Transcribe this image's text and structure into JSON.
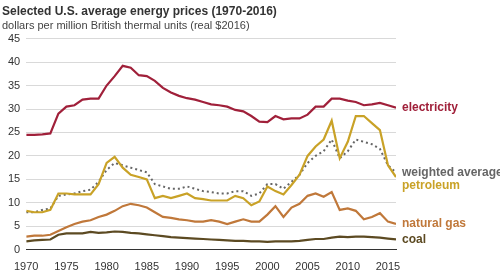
{
  "chart_data": {
    "type": "line",
    "title": "Selected U.S. average energy prices (1970-2016)",
    "subtitle": "dollars per million British thermal units (real $2016)",
    "x": [
      1970,
      1971,
      1972,
      1973,
      1974,
      1975,
      1976,
      1977,
      1978,
      1979,
      1980,
      1981,
      1982,
      1983,
      1984,
      1985,
      1986,
      1987,
      1988,
      1989,
      1990,
      1991,
      1992,
      1993,
      1994,
      1995,
      1996,
      1997,
      1998,
      1999,
      2000,
      2001,
      2002,
      2003,
      2004,
      2005,
      2006,
      2007,
      2008,
      2009,
      2010,
      2011,
      2012,
      2013,
      2014,
      2015,
      2016
    ],
    "xlim": [
      1970,
      2016
    ],
    "xticks": [
      1970,
      1975,
      1980,
      1985,
      1990,
      1995,
      2000,
      2005,
      2010,
      2015
    ],
    "ylim": [
      0,
      45
    ],
    "yticks": [
      0,
      5,
      10,
      15,
      20,
      25,
      30,
      35,
      40,
      45
    ],
    "grid": true,
    "series": [
      {
        "name": "electricity",
        "color": "#a0203a",
        "line_style": "solid",
        "values": [
          24.5,
          24.5,
          24.6,
          24.8,
          29,
          30.5,
          30.8,
          32,
          32.2,
          32.2,
          35,
          37,
          39.2,
          38.8,
          37.2,
          37,
          36,
          34.5,
          33.5,
          32.8,
          32.3,
          32,
          31.5,
          31,
          30.8,
          30.5,
          29.8,
          29.5,
          28.5,
          27.3,
          27.2,
          28.5,
          27.8,
          28,
          28,
          28.8,
          30.5,
          30.5,
          32.2,
          32.2,
          31.8,
          31.5,
          30.8,
          31,
          31.3,
          30.8,
          30.3
        ]
      },
      {
        "name": "petroleum",
        "color": "#c9a227",
        "line_style": "solid",
        "values": [
          8.3,
          8,
          8,
          8.5,
          12,
          12,
          11.8,
          11.8,
          11.8,
          14,
          18.5,
          19.8,
          17.5,
          16,
          15.5,
          15,
          11,
          11.5,
          11,
          11.5,
          12,
          11,
          10.8,
          10.5,
          10.5,
          10.5,
          11.5,
          11,
          9.5,
          10.3,
          13.5,
          12.5,
          11.8,
          13.8,
          16,
          20,
          22,
          23.5,
          27.5,
          19.5,
          23,
          28.5,
          28.5,
          27,
          25.5,
          18,
          15.5
        ]
      },
      {
        "name": "weighted average",
        "color": "#666666",
        "line_style": "dotted",
        "values": [
          8,
          8,
          8.5,
          8.8,
          11.5,
          11.8,
          12,
          12.5,
          12.8,
          14.5,
          17,
          18.5,
          18,
          17.5,
          17,
          16.5,
          14,
          13.5,
          13,
          13,
          13.5,
          13,
          12.5,
          12.3,
          12,
          12,
          12.5,
          12.5,
          11.5,
          12,
          14,
          14,
          13,
          14.5,
          16,
          18.5,
          20,
          21,
          23.5,
          19.5,
          21,
          23.5,
          23,
          22.5,
          21.5,
          18,
          16.5
        ]
      },
      {
        "name": "natural gas",
        "color": "#c0783a",
        "line_style": "solid",
        "values": [
          2.8,
          3,
          3,
          3.2,
          4,
          4.8,
          5.5,
          6,
          6.3,
          7,
          7.5,
          8.3,
          9.3,
          9.8,
          9.5,
          9,
          8,
          7,
          6.8,
          6.5,
          6.3,
          6,
          6,
          6.3,
          6,
          5.5,
          6,
          6.5,
          6,
          6,
          7.5,
          9.3,
          7,
          9,
          9.8,
          11.5,
          12,
          11.3,
          12.3,
          8.5,
          8.8,
          8.3,
          6.5,
          7,
          7.8,
          6,
          5.5
        ]
      },
      {
        "name": "coal",
        "color": "#5c4a22",
        "line_style": "solid",
        "values": [
          1.8,
          2,
          2.1,
          2.2,
          3.2,
          3.5,
          3.5,
          3.5,
          3.8,
          3.6,
          3.7,
          3.9,
          3.8,
          3.6,
          3.5,
          3.3,
          3.1,
          2.9,
          2.7,
          2.6,
          2.5,
          2.4,
          2.3,
          2.2,
          2.1,
          2,
          1.9,
          1.9,
          1.8,
          1.8,
          1.7,
          1.8,
          1.8,
          1.8,
          1.9,
          2.1,
          2.3,
          2.3,
          2.6,
          2.8,
          2.7,
          2.8,
          2.8,
          2.7,
          2.6,
          2.4,
          2.2
        ]
      }
    ]
  }
}
